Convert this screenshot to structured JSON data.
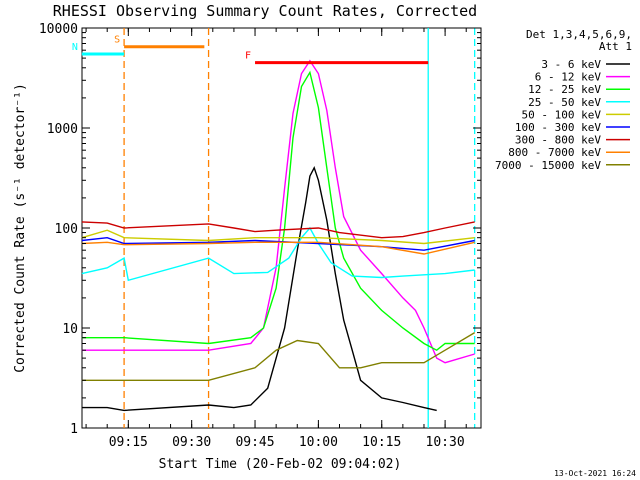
{
  "chart_data": {
    "type": "line",
    "title": "RHESSI Observing Summary Count Rates, Corrected",
    "xlabel": "Start Time (20-Feb-02 09:04:02)",
    "ylabel": "Corrected Count Rate (s⁻¹ detector⁻¹)",
    "y_scale": "log",
    "ylim": [
      1,
      10000
    ],
    "y_ticks": [
      {
        "value": 1,
        "label": "1"
      },
      {
        "value": 10,
        "label": "10"
      },
      {
        "value": 100,
        "label": "100"
      },
      {
        "value": 1000,
        "label": "1000"
      },
      {
        "value": 10000,
        "label": "10000"
      }
    ],
    "x_range": [
      "09:04:02",
      "10:38:30"
    ],
    "x_ticks": [
      "09:15",
      "09:30",
      "09:45",
      "10:00",
      "10:15",
      "10:30"
    ],
    "legend_header": [
      "Det 1,3,4,5,6,9,",
      "Att 1"
    ],
    "legend_position": "right",
    "footer_date": "13-Oct-2021 16:24",
    "series": [
      {
        "name": "3 - 6 keV",
        "color": "#000000",
        "points": [
          [
            "09:04",
            1.6
          ],
          [
            "09:10",
            1.6
          ],
          [
            "09:14",
            1.5
          ],
          [
            "09:34",
            1.7
          ],
          [
            "09:40",
            1.6
          ],
          [
            "09:44",
            1.7
          ],
          [
            "09:48",
            2.5
          ],
          [
            "09:52",
            10
          ],
          [
            "09:55",
            60
          ],
          [
            "09:57",
            180
          ],
          [
            "09:58",
            330
          ],
          [
            "09:59",
            400
          ],
          [
            "10:00",
            300
          ],
          [
            "10:02",
            120
          ],
          [
            "10:04",
            35
          ],
          [
            "10:06",
            12
          ],
          [
            "10:08",
            6
          ],
          [
            "10:10",
            3
          ],
          [
            "10:15",
            2
          ],
          [
            "10:20",
            1.8
          ],
          [
            "10:25",
            1.6
          ],
          [
            "10:28",
            1.5
          ]
        ]
      },
      {
        "name": "6 - 12 keV",
        "color": "#ff00ff",
        "points": [
          [
            "09:04",
            6
          ],
          [
            "09:14",
            6
          ],
          [
            "09:34",
            6
          ],
          [
            "09:44",
            7
          ],
          [
            "09:47",
            10
          ],
          [
            "09:50",
            40
          ],
          [
            "09:52",
            250
          ],
          [
            "09:54",
            1400
          ],
          [
            "09:56",
            3500
          ],
          [
            "09:58",
            4700
          ],
          [
            "10:00",
            3500
          ],
          [
            "10:02",
            1500
          ],
          [
            "10:04",
            400
          ],
          [
            "10:06",
            130
          ],
          [
            "10:10",
            60
          ],
          [
            "10:15",
            35
          ],
          [
            "10:20",
            20
          ],
          [
            "10:23",
            15
          ],
          [
            "10:25",
            10
          ],
          [
            "10:28",
            5
          ],
          [
            "10:30",
            4.5
          ],
          [
            "10:37",
            5.5
          ]
        ]
      },
      {
        "name": "12 - 25 keV",
        "color": "#00ff00",
        "points": [
          [
            "09:04",
            8
          ],
          [
            "09:14",
            8
          ],
          [
            "09:34",
            7
          ],
          [
            "09:44",
            8
          ],
          [
            "09:47",
            10
          ],
          [
            "09:50",
            25
          ],
          [
            "09:52",
            100
          ],
          [
            "09:54",
            800
          ],
          [
            "09:56",
            2600
          ],
          [
            "09:58",
            3600
          ],
          [
            "10:00",
            1600
          ],
          [
            "10:02",
            400
          ],
          [
            "10:04",
            100
          ],
          [
            "10:06",
            50
          ],
          [
            "10:10",
            25
          ],
          [
            "10:15",
            15
          ],
          [
            "10:20",
            10
          ],
          [
            "10:25",
            7
          ],
          [
            "10:28",
            6
          ],
          [
            "10:30",
            7
          ],
          [
            "10:37",
            7
          ]
        ]
      },
      {
        "name": "25 - 50 keV",
        "color": "#00ffff",
        "points": [
          [
            "09:04",
            35
          ],
          [
            "09:10",
            40
          ],
          [
            "09:14",
            50
          ],
          [
            "09:15",
            30
          ],
          [
            "09:34",
            50
          ],
          [
            "09:40",
            35
          ],
          [
            "09:48",
            36
          ],
          [
            "09:53",
            50
          ],
          [
            "09:56",
            80
          ],
          [
            "09:58",
            100
          ],
          [
            "10:00",
            70
          ],
          [
            "10:03",
            45
          ],
          [
            "10:08",
            33
          ],
          [
            "10:15",
            32
          ],
          [
            "10:20",
            33
          ],
          [
            "10:30",
            35
          ],
          [
            "10:37",
            38
          ]
        ]
      },
      {
        "name": "50 - 100 keV",
        "color": "#cccc00",
        "points": [
          [
            "09:04",
            80
          ],
          [
            "09:10",
            95
          ],
          [
            "09:14",
            80
          ],
          [
            "09:34",
            75
          ],
          [
            "09:45",
            80
          ],
          [
            "10:00",
            80
          ],
          [
            "10:15",
            75
          ],
          [
            "10:25",
            70
          ],
          [
            "10:37",
            80
          ]
        ]
      },
      {
        "name": "100 - 300 keV",
        "color": "#0000ff",
        "points": [
          [
            "09:04",
            75
          ],
          [
            "09:10",
            80
          ],
          [
            "09:14",
            70
          ],
          [
            "09:34",
            72
          ],
          [
            "09:45",
            75
          ],
          [
            "10:00",
            70
          ],
          [
            "10:15",
            65
          ],
          [
            "10:25",
            60
          ],
          [
            "10:37",
            75
          ]
        ]
      },
      {
        "name": "300 - 800 keV",
        "color": "#cc0000",
        "points": [
          [
            "09:04",
            115
          ],
          [
            "09:10",
            112
          ],
          [
            "09:14",
            100
          ],
          [
            "09:34",
            110
          ],
          [
            "09:40",
            100
          ],
          [
            "09:45",
            92
          ],
          [
            "09:50",
            95
          ],
          [
            "10:00",
            100
          ],
          [
            "10:05",
            90
          ],
          [
            "10:15",
            80
          ],
          [
            "10:20",
            82
          ],
          [
            "10:25",
            90
          ],
          [
            "10:30",
            100
          ],
          [
            "10:37",
            115
          ]
        ]
      },
      {
        "name": "800 - 7000 keV",
        "color": "#ff8000",
        "points": [
          [
            "09:04",
            70
          ],
          [
            "09:10",
            72
          ],
          [
            "09:14",
            68
          ],
          [
            "09:34",
            70
          ],
          [
            "09:45",
            72
          ],
          [
            "10:00",
            72
          ],
          [
            "10:15",
            65
          ],
          [
            "10:25",
            55
          ],
          [
            "10:37",
            72
          ]
        ]
      },
      {
        "name": "7000 - 15000 keV",
        "color": "#808000",
        "points": [
          [
            "09:04",
            3
          ],
          [
            "09:10",
            3
          ],
          [
            "09:14",
            3
          ],
          [
            "09:34",
            3
          ],
          [
            "09:45",
            4
          ],
          [
            "09:50",
            6
          ],
          [
            "09:55",
            7.5
          ],
          [
            "10:00",
            7
          ],
          [
            "10:05",
            4
          ],
          [
            "10:10",
            4
          ],
          [
            "10:15",
            4.5
          ],
          [
            "10:20",
            4.5
          ],
          [
            "10:25",
            4.5
          ],
          [
            "10:30",
            6
          ],
          [
            "10:37",
            9
          ]
        ]
      }
    ],
    "annotations": [
      {
        "label": "S",
        "color": "#ff8000",
        "start": "09:14",
        "end": "09:33",
        "level": 6500
      },
      {
        "label": "N",
        "color": "#00ffff",
        "start": "09:04",
        "end": "09:14",
        "level": 5500
      },
      {
        "label": "F",
        "color": "#ff0000",
        "start": "09:45",
        "end": "10:26",
        "level": 4500
      }
    ],
    "vertical_markers": [
      {
        "time": "09:14",
        "color": "#ff8000",
        "style": "dashed"
      },
      {
        "time": "09:34",
        "color": "#ff8000",
        "style": "dashed"
      },
      {
        "time": "10:26",
        "color": "#00ffff",
        "style": "solid"
      },
      {
        "time": "10:37",
        "color": "#00ffff",
        "style": "dashed"
      }
    ],
    "grid": false
  }
}
